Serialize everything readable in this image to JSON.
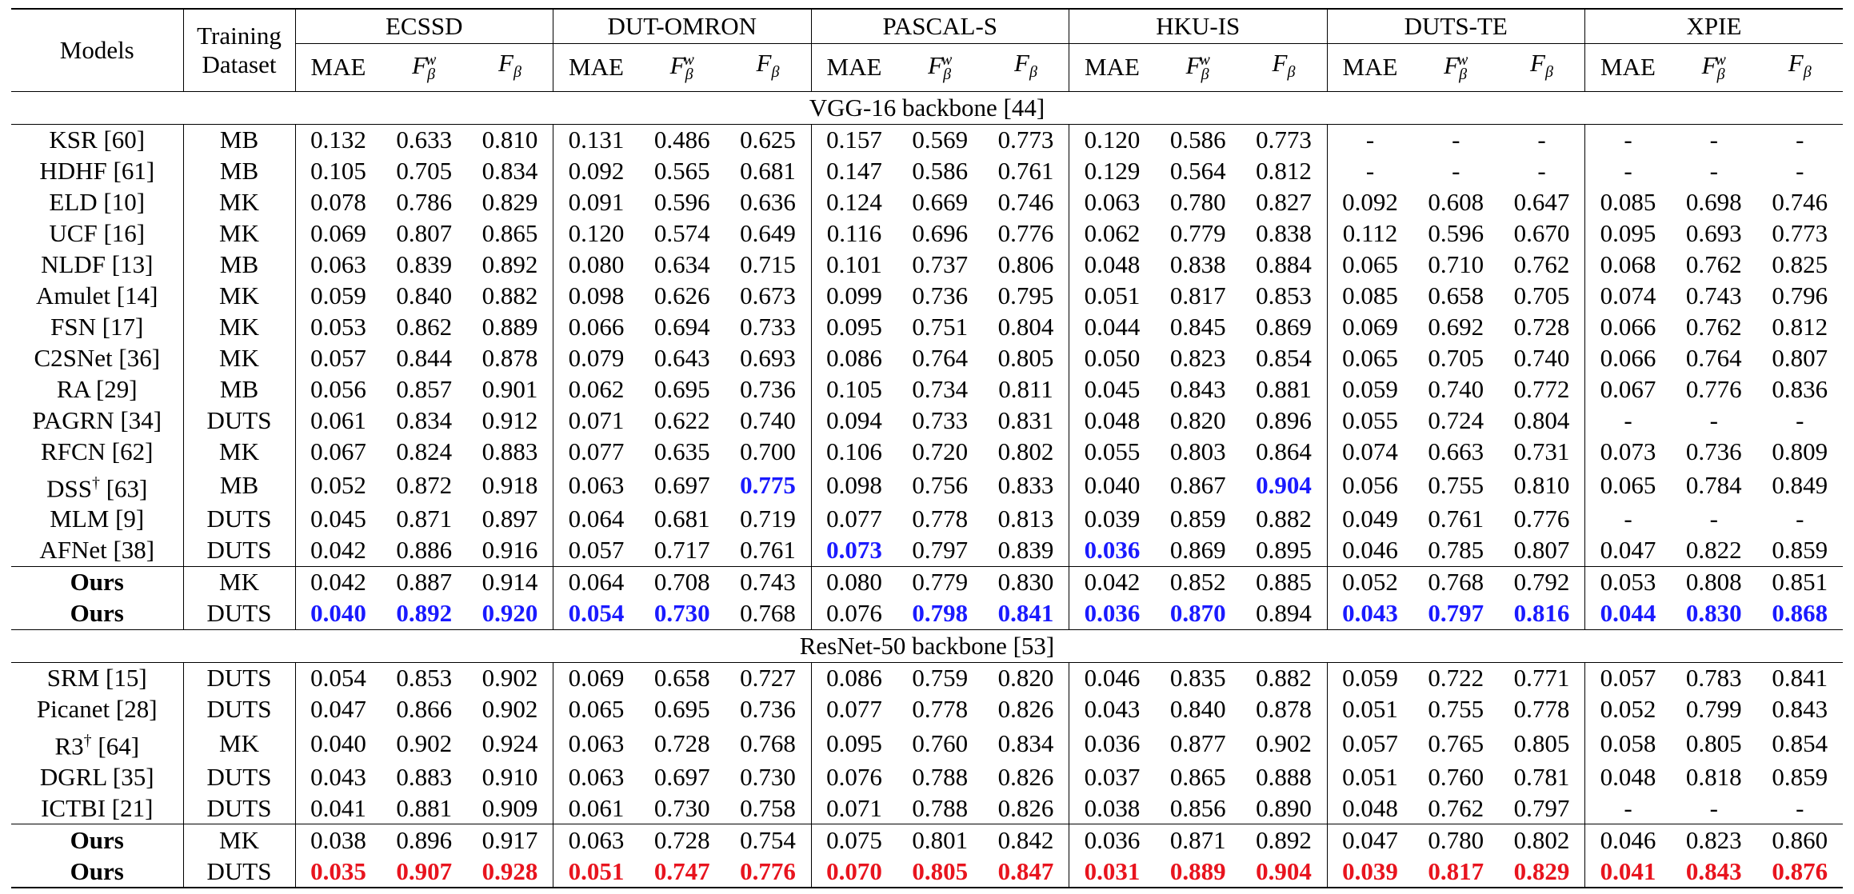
{
  "header": {
    "models_label": "Models",
    "training_label_line1": "Training",
    "training_label_line2": "Dataset",
    "datasets": [
      "ECSSD",
      "DUT-OMRON",
      "PASCAL-S",
      "HKU-IS",
      "DUTS-TE",
      "XPIE"
    ],
    "metric_mae": "MAE",
    "metric_fw_base": "F",
    "metric_fw_sup": "w",
    "metric_fw_sub": "β",
    "metric_f_base": "F",
    "metric_f_sub": "β"
  },
  "sections": [
    {
      "title": "VGG-16 backbone [44]",
      "accent": "#1a1aff",
      "rows": [
        {
          "model": "KSR [60]",
          "dagger": false,
          "train": "MB",
          "ours": false,
          "vals": [
            "0.132",
            "0.633",
            "0.810",
            "0.131",
            "0.486",
            "0.625",
            "0.157",
            "0.569",
            "0.773",
            "0.120",
            "0.586",
            "0.773",
            "-",
            "-",
            "-",
            "-",
            "-",
            "-"
          ],
          "best": []
        },
        {
          "model": "HDHF [61]",
          "dagger": false,
          "train": "MB",
          "ours": false,
          "vals": [
            "0.105",
            "0.705",
            "0.834",
            "0.092",
            "0.565",
            "0.681",
            "0.147",
            "0.586",
            "0.761",
            "0.129",
            "0.564",
            "0.812",
            "-",
            "-",
            "-",
            "-",
            "-",
            "-"
          ],
          "best": []
        },
        {
          "model": "ELD [10]",
          "dagger": false,
          "train": "MK",
          "ours": false,
          "vals": [
            "0.078",
            "0.786",
            "0.829",
            "0.091",
            "0.596",
            "0.636",
            "0.124",
            "0.669",
            "0.746",
            "0.063",
            "0.780",
            "0.827",
            "0.092",
            "0.608",
            "0.647",
            "0.085",
            "0.698",
            "0.746"
          ],
          "best": []
        },
        {
          "model": "UCF [16]",
          "dagger": false,
          "train": "MK",
          "ours": false,
          "vals": [
            "0.069",
            "0.807",
            "0.865",
            "0.120",
            "0.574",
            "0.649",
            "0.116",
            "0.696",
            "0.776",
            "0.062",
            "0.779",
            "0.838",
            "0.112",
            "0.596",
            "0.670",
            "0.095",
            "0.693",
            "0.773"
          ],
          "best": []
        },
        {
          "model": "NLDF [13]",
          "dagger": false,
          "train": "MB",
          "ours": false,
          "vals": [
            "0.063",
            "0.839",
            "0.892",
            "0.080",
            "0.634",
            "0.715",
            "0.101",
            "0.737",
            "0.806",
            "0.048",
            "0.838",
            "0.884",
            "0.065",
            "0.710",
            "0.762",
            "0.068",
            "0.762",
            "0.825"
          ],
          "best": []
        },
        {
          "model": "Amulet [14]",
          "dagger": false,
          "train": "MK",
          "ours": false,
          "vals": [
            "0.059",
            "0.840",
            "0.882",
            "0.098",
            "0.626",
            "0.673",
            "0.099",
            "0.736",
            "0.795",
            "0.051",
            "0.817",
            "0.853",
            "0.085",
            "0.658",
            "0.705",
            "0.074",
            "0.743",
            "0.796"
          ],
          "best": []
        },
        {
          "model": "FSN [17]",
          "dagger": false,
          "train": "MK",
          "ours": false,
          "vals": [
            "0.053",
            "0.862",
            "0.889",
            "0.066",
            "0.694",
            "0.733",
            "0.095",
            "0.751",
            "0.804",
            "0.044",
            "0.845",
            "0.869",
            "0.069",
            "0.692",
            "0.728",
            "0.066",
            "0.762",
            "0.812"
          ],
          "best": []
        },
        {
          "model": "C2SNet [36]",
          "dagger": false,
          "train": "MK",
          "ours": false,
          "vals": [
            "0.057",
            "0.844",
            "0.878",
            "0.079",
            "0.643",
            "0.693",
            "0.086",
            "0.764",
            "0.805",
            "0.050",
            "0.823",
            "0.854",
            "0.065",
            "0.705",
            "0.740",
            "0.066",
            "0.764",
            "0.807"
          ],
          "best": []
        },
        {
          "model": "RA [29]",
          "dagger": false,
          "train": "MB",
          "ours": false,
          "vals": [
            "0.056",
            "0.857",
            "0.901",
            "0.062",
            "0.695",
            "0.736",
            "0.105",
            "0.734",
            "0.811",
            "0.045",
            "0.843",
            "0.881",
            "0.059",
            "0.740",
            "0.772",
            "0.067",
            "0.776",
            "0.836"
          ],
          "best": []
        },
        {
          "model": "PAGRN [34]",
          "dagger": false,
          "train": "DUTS",
          "ours": false,
          "vals": [
            "0.061",
            "0.834",
            "0.912",
            "0.071",
            "0.622",
            "0.740",
            "0.094",
            "0.733",
            "0.831",
            "0.048",
            "0.820",
            "0.896",
            "0.055",
            "0.724",
            "0.804",
            "-",
            "-",
            "-"
          ],
          "best": []
        },
        {
          "model": "RFCN [62]",
          "dagger": false,
          "train": "MK",
          "ours": false,
          "vals": [
            "0.067",
            "0.824",
            "0.883",
            "0.077",
            "0.635",
            "0.700",
            "0.106",
            "0.720",
            "0.802",
            "0.055",
            "0.803",
            "0.864",
            "0.074",
            "0.663",
            "0.731",
            "0.073",
            "0.736",
            "0.809"
          ],
          "best": []
        },
        {
          "model": "DSS [63]",
          "dagger": true,
          "train": "MB",
          "ours": false,
          "vals": [
            "0.052",
            "0.872",
            "0.918",
            "0.063",
            "0.697",
            "0.775",
            "0.098",
            "0.756",
            "0.833",
            "0.040",
            "0.867",
            "0.904",
            "0.056",
            "0.755",
            "0.810",
            "0.065",
            "0.784",
            "0.849"
          ],
          "best": [
            5,
            11
          ]
        },
        {
          "model": "MLM [9]",
          "dagger": false,
          "train": "DUTS",
          "ours": false,
          "vals": [
            "0.045",
            "0.871",
            "0.897",
            "0.064",
            "0.681",
            "0.719",
            "0.077",
            "0.778",
            "0.813",
            "0.039",
            "0.859",
            "0.882",
            "0.049",
            "0.761",
            "0.776",
            "-",
            "-",
            "-"
          ],
          "best": []
        },
        {
          "model": "AFNet [38]",
          "dagger": false,
          "train": "DUTS",
          "ours": false,
          "vals": [
            "0.042",
            "0.886",
            "0.916",
            "0.057",
            "0.717",
            "0.761",
            "0.073",
            "0.797",
            "0.839",
            "0.036",
            "0.869",
            "0.895",
            "0.046",
            "0.785",
            "0.807",
            "0.047",
            "0.822",
            "0.859"
          ],
          "best": [
            6,
            9
          ]
        },
        {
          "model": "Ours",
          "dagger": false,
          "train": "MK",
          "ours": true,
          "vals": [
            "0.042",
            "0.887",
            "0.914",
            "0.064",
            "0.708",
            "0.743",
            "0.080",
            "0.779",
            "0.830",
            "0.042",
            "0.852",
            "0.885",
            "0.052",
            "0.768",
            "0.792",
            "0.053",
            "0.808",
            "0.851"
          ],
          "best": []
        },
        {
          "model": "Ours",
          "dagger": false,
          "train": "DUTS",
          "ours": true,
          "vals": [
            "0.040",
            "0.892",
            "0.920",
            "0.054",
            "0.730",
            "0.768",
            "0.076",
            "0.798",
            "0.841",
            "0.036",
            "0.870",
            "0.894",
            "0.043",
            "0.797",
            "0.816",
            "0.044",
            "0.830",
            "0.868"
          ],
          "best": [
            0,
            1,
            2,
            3,
            4,
            7,
            8,
            9,
            10,
            12,
            13,
            14,
            15,
            16,
            17
          ]
        }
      ]
    },
    {
      "title": "ResNet-50 backbone [53]",
      "accent": "#e8141e",
      "rows": [
        {
          "model": "SRM [15]",
          "dagger": false,
          "train": "DUTS",
          "ours": false,
          "vals": [
            "0.054",
            "0.853",
            "0.902",
            "0.069",
            "0.658",
            "0.727",
            "0.086",
            "0.759",
            "0.820",
            "0.046",
            "0.835",
            "0.882",
            "0.059",
            "0.722",
            "0.771",
            "0.057",
            "0.783",
            "0.841"
          ],
          "best": []
        },
        {
          "model": "Picanet [28]",
          "dagger": false,
          "train": "DUTS",
          "ours": false,
          "vals": [
            "0.047",
            "0.866",
            "0.902",
            "0.065",
            "0.695",
            "0.736",
            "0.077",
            "0.778",
            "0.826",
            "0.043",
            "0.840",
            "0.878",
            "0.051",
            "0.755",
            "0.778",
            "0.052",
            "0.799",
            "0.843"
          ],
          "best": []
        },
        {
          "model": "R3 [64]",
          "dagger": true,
          "train": "MK",
          "ours": false,
          "vals": [
            "0.040",
            "0.902",
            "0.924",
            "0.063",
            "0.728",
            "0.768",
            "0.095",
            "0.760",
            "0.834",
            "0.036",
            "0.877",
            "0.902",
            "0.057",
            "0.765",
            "0.805",
            "0.058",
            "0.805",
            "0.854"
          ],
          "best": []
        },
        {
          "model": "DGRL [35]",
          "dagger": false,
          "train": "DUTS",
          "ours": false,
          "vals": [
            "0.043",
            "0.883",
            "0.910",
            "0.063",
            "0.697",
            "0.730",
            "0.076",
            "0.788",
            "0.826",
            "0.037",
            "0.865",
            "0.888",
            "0.051",
            "0.760",
            "0.781",
            "0.048",
            "0.818",
            "0.859"
          ],
          "best": []
        },
        {
          "model": "ICTBI [21]",
          "dagger": false,
          "train": "DUTS",
          "ours": false,
          "vals": [
            "0.041",
            "0.881",
            "0.909",
            "0.061",
            "0.730",
            "0.758",
            "0.071",
            "0.788",
            "0.826",
            "0.038",
            "0.856",
            "0.890",
            "0.048",
            "0.762",
            "0.797",
            "-",
            "-",
            "-"
          ],
          "best": []
        },
        {
          "model": "Ours",
          "dagger": false,
          "train": "MK",
          "ours": true,
          "vals": [
            "0.038",
            "0.896",
            "0.917",
            "0.063",
            "0.728",
            "0.754",
            "0.075",
            "0.801",
            "0.842",
            "0.036",
            "0.871",
            "0.892",
            "0.047",
            "0.780",
            "0.802",
            "0.046",
            "0.823",
            "0.860"
          ],
          "best": []
        },
        {
          "model": "Ours",
          "dagger": false,
          "train": "DUTS",
          "ours": true,
          "vals": [
            "0.035",
            "0.907",
            "0.928",
            "0.051",
            "0.747",
            "0.776",
            "0.070",
            "0.805",
            "0.847",
            "0.031",
            "0.889",
            "0.904",
            "0.039",
            "0.817",
            "0.829",
            "0.041",
            "0.843",
            "0.876"
          ],
          "best": [
            0,
            1,
            2,
            3,
            4,
            5,
            6,
            7,
            8,
            9,
            10,
            11,
            12,
            13,
            14,
            15,
            16,
            17
          ]
        }
      ]
    }
  ]
}
